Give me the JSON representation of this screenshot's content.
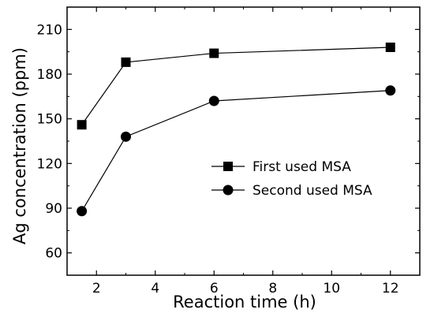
{
  "chart_data": {
    "type": "line",
    "xlabel": "Reaction time (h)",
    "ylabel": "Ag concentration (ppm)",
    "xlim": [
      1.0,
      13.0
    ],
    "ylim": [
      45,
      225
    ],
    "xticks": [
      2,
      4,
      6,
      8,
      10,
      12
    ],
    "yticks": [
      60,
      90,
      120,
      150,
      180,
      210
    ],
    "x": [
      1.5,
      3,
      6,
      12
    ],
    "series": [
      {
        "name": "First used MSA",
        "marker": "square",
        "values": [
          146,
          188,
          194,
          198
        ]
      },
      {
        "name": "Second used MSA",
        "marker": "circle",
        "values": [
          88,
          138,
          162,
          169
        ]
      }
    ],
    "legend_position": "center-right",
    "grid": false
  }
}
